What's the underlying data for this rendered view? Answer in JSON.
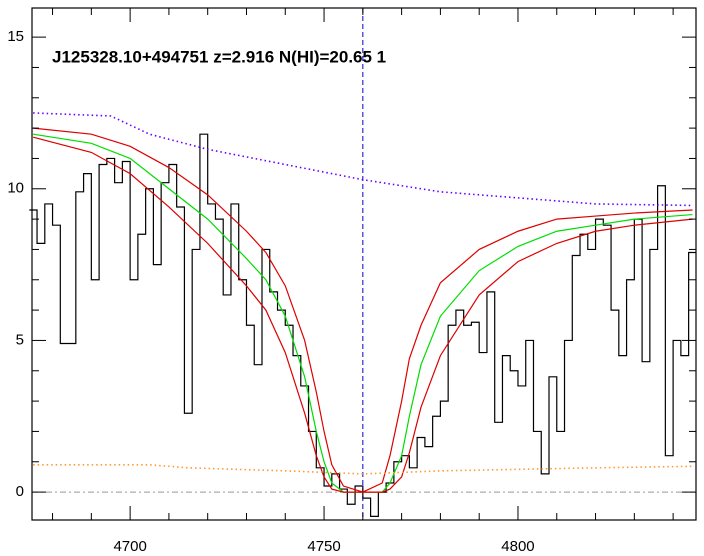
{
  "chart_data": {
    "type": "line",
    "title": "J125328.10+494751 z=2.916 N(HI)=20.65 1",
    "xlim": [
      4674.7,
      4845.9
    ],
    "ylim": [
      -0.92,
      15.96
    ],
    "xticks": [
      4700,
      4750,
      4800
    ],
    "yticks": [
      0,
      5,
      10,
      15
    ],
    "xminorticks": [
      4680,
      4690,
      4710,
      4720,
      4730,
      4740,
      4760,
      4770,
      4780,
      4790,
      4810,
      4820,
      4830,
      4840
    ],
    "yminorticks": [
      1,
      2,
      3,
      4,
      6,
      7,
      8,
      9,
      11,
      12,
      13,
      14
    ],
    "hline": {
      "y": 0,
      "color": "#999999"
    },
    "vline": {
      "x": 4760,
      "color": "#0000cc"
    },
    "series": [
      {
        "style": "step",
        "color": "#000000",
        "x": [
          4675,
          4677,
          4679,
          4681,
          4683,
          4685,
          4687,
          4689,
          4691,
          4693,
          4695,
          4697,
          4699,
          4701,
          4703,
          4705,
          4707,
          4709,
          4711,
          4713,
          4715,
          4717,
          4719,
          4721,
          4723,
          4725,
          4727,
          4729,
          4731,
          4733,
          4735,
          4737,
          4739,
          4741,
          4743,
          4745,
          4747,
          4749,
          4751,
          4753,
          4755,
          4757,
          4759,
          4761,
          4763,
          4765,
          4767,
          4769,
          4771,
          4773,
          4775,
          4777,
          4779,
          4781,
          4783,
          4785,
          4787,
          4789,
          4791,
          4793,
          4795,
          4797,
          4799,
          4801,
          4803,
          4805,
          4807,
          4809,
          4811,
          4813,
          4815,
          4817,
          4819,
          4821,
          4823,
          4825,
          4827,
          4829,
          4831,
          4833,
          4835,
          4837,
          4839,
          4841,
          4843,
          4845
        ],
        "values": [
          9.3,
          8.2,
          9.5,
          8.8,
          4.9,
          4.9,
          9.9,
          10.5,
          7.0,
          10.8,
          11.0,
          10.2,
          10.9,
          7.0,
          8.5,
          10.0,
          7.5,
          10.2,
          10.8,
          9.4,
          2.6,
          8.0,
          11.8,
          9.5,
          9.0,
          6.5,
          9.5,
          7.0,
          5.5,
          4.2,
          8.0,
          6.6,
          6.0,
          5.5,
          4.5,
          3.5,
          2.0,
          0.8,
          0.2,
          0.6,
          0.1,
          -0.4,
          0.2,
          -0.2,
          -0.8,
          0.0,
          0.3,
          1.0,
          1.2,
          0.8,
          1.8,
          1.5,
          2.5,
          3.0,
          5.5,
          6.0,
          5.5,
          5.6,
          4.6,
          6.6,
          2.3,
          4.5,
          4.0,
          3.5,
          5.0,
          2.0,
          0.6,
          3.8,
          2.0,
          5.0,
          7.8,
          8.5,
          8.0,
          9.0,
          8.8,
          6.0,
          4.5,
          7.0,
          9.0,
          4.3,
          8.0,
          10.1,
          1.2,
          5.0,
          4.5,
          7.9
        ]
      },
      {
        "style": "solid",
        "color": "#00dd00",
        "x": [
          4675,
          4690,
          4700,
          4710,
          4720,
          4730,
          4735,
          4740,
          4745,
          4748,
          4750,
          4752,
          4755,
          4760,
          4765,
          4767,
          4770,
          4772,
          4775,
          4780,
          4790,
          4800,
          4810,
          4820,
          4830,
          4845
        ],
        "values": [
          11.8,
          11.5,
          11.0,
          10.0,
          9.0,
          7.7,
          7.0,
          5.8,
          3.8,
          2.0,
          1.0,
          0.3,
          0,
          0,
          0,
          0.3,
          1.2,
          2.5,
          4.2,
          5.8,
          7.3,
          8.1,
          8.6,
          8.8,
          9.0,
          9.15
        ]
      },
      {
        "style": "solid",
        "color": "#dd0000",
        "x": [
          4675,
          4690,
          4700,
          4710,
          4720,
          4730,
          4735,
          4740,
          4745,
          4748,
          4750,
          4752,
          4755,
          4760,
          4765,
          4767,
          4770,
          4772,
          4775,
          4780,
          4790,
          4800,
          4810,
          4820,
          4830,
          4845
        ],
        "values": [
          12.0,
          11.8,
          11.4,
          10.7,
          9.8,
          8.6,
          7.9,
          6.8,
          5.0,
          3.3,
          2.0,
          0.9,
          0.2,
          0,
          0.3,
          1.2,
          3.0,
          4.4,
          5.5,
          6.9,
          8.0,
          8.6,
          9.0,
          9.1,
          9.2,
          9.3
        ]
      },
      {
        "style": "solid",
        "color": "#dd0000",
        "x": [
          4675,
          4690,
          4700,
          4710,
          4720,
          4730,
          4735,
          4740,
          4745,
          4748,
          4750,
          4752,
          4755,
          4760,
          4765,
          4767,
          4770,
          4772,
          4775,
          4780,
          4790,
          4800,
          4810,
          4820,
          4830,
          4845
        ],
        "values": [
          11.7,
          11.2,
          10.5,
          9.4,
          8.2,
          6.8,
          6.0,
          4.6,
          2.6,
          1.2,
          0.5,
          0.1,
          0,
          0,
          0,
          0.1,
          0.5,
          1.3,
          2.8,
          4.5,
          6.5,
          7.6,
          8.2,
          8.6,
          8.8,
          9.0
        ]
      },
      {
        "style": "dotted",
        "color": "#6600ff",
        "x": [
          4675,
          4695,
          4705,
          4720,
          4740,
          4760,
          4780,
          4800,
          4820,
          4845
        ],
        "values": [
          12.5,
          12.4,
          11.8,
          11.3,
          10.8,
          10.3,
          9.9,
          9.7,
          9.5,
          9.45
        ]
      },
      {
        "style": "dotted",
        "color": "#ff9933",
        "x": [
          4675,
          4705,
          4715,
          4740,
          4760,
          4780,
          4800,
          4820,
          4845
        ],
        "values": [
          0.9,
          0.9,
          0.8,
          0.7,
          0.6,
          0.7,
          0.75,
          0.8,
          0.85
        ]
      }
    ]
  }
}
